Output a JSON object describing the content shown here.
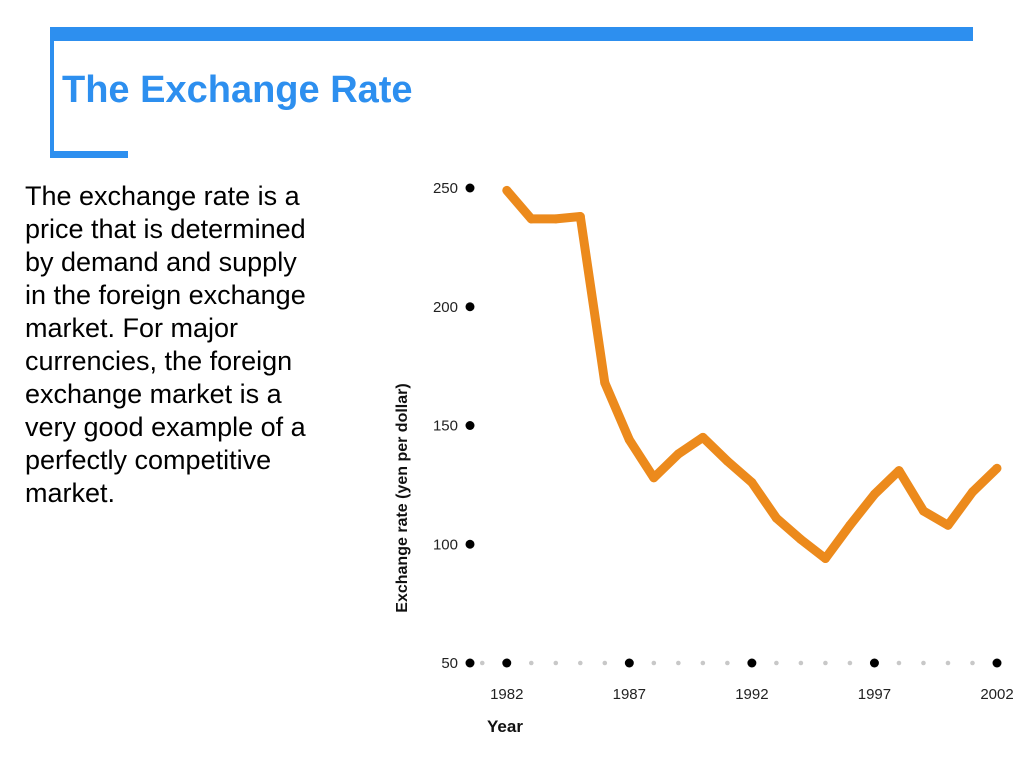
{
  "slide": {
    "title": "The Exchange Rate",
    "body": "The exchange rate is a price that is determined by demand and supply in the foreign exchange market.  For major currencies, the foreign exchange market is a very good example of a perfectly competitive market.",
    "accent_color": "#2d8fef"
  },
  "chart_data": {
    "type": "line",
    "xlabel": "Year",
    "ylabel": "Exchange rate (yen per dollar)",
    "xlim": [
      1980.5,
      2002
    ],
    "ylim": [
      50,
      250
    ],
    "x_ticks": [
      1982,
      1987,
      1992,
      1997,
      2002
    ],
    "y_ticks": [
      50,
      100,
      150,
      200,
      250
    ],
    "grid": false,
    "line_color": "#ec8a1c",
    "series": [
      {
        "x": [
          1982,
          1983,
          1984,
          1985,
          1986,
          1987,
          1988,
          1989,
          1990,
          1991,
          1992,
          1993,
          1994,
          1995,
          1996,
          1997,
          1998,
          1999,
          2000,
          2001,
          2002
        ],
        "values": [
          249,
          237,
          237,
          238,
          168,
          144,
          128,
          138,
          145,
          135,
          126,
          111,
          102,
          94,
          108,
          121,
          131,
          114,
          108,
          122,
          132
        ]
      }
    ]
  }
}
